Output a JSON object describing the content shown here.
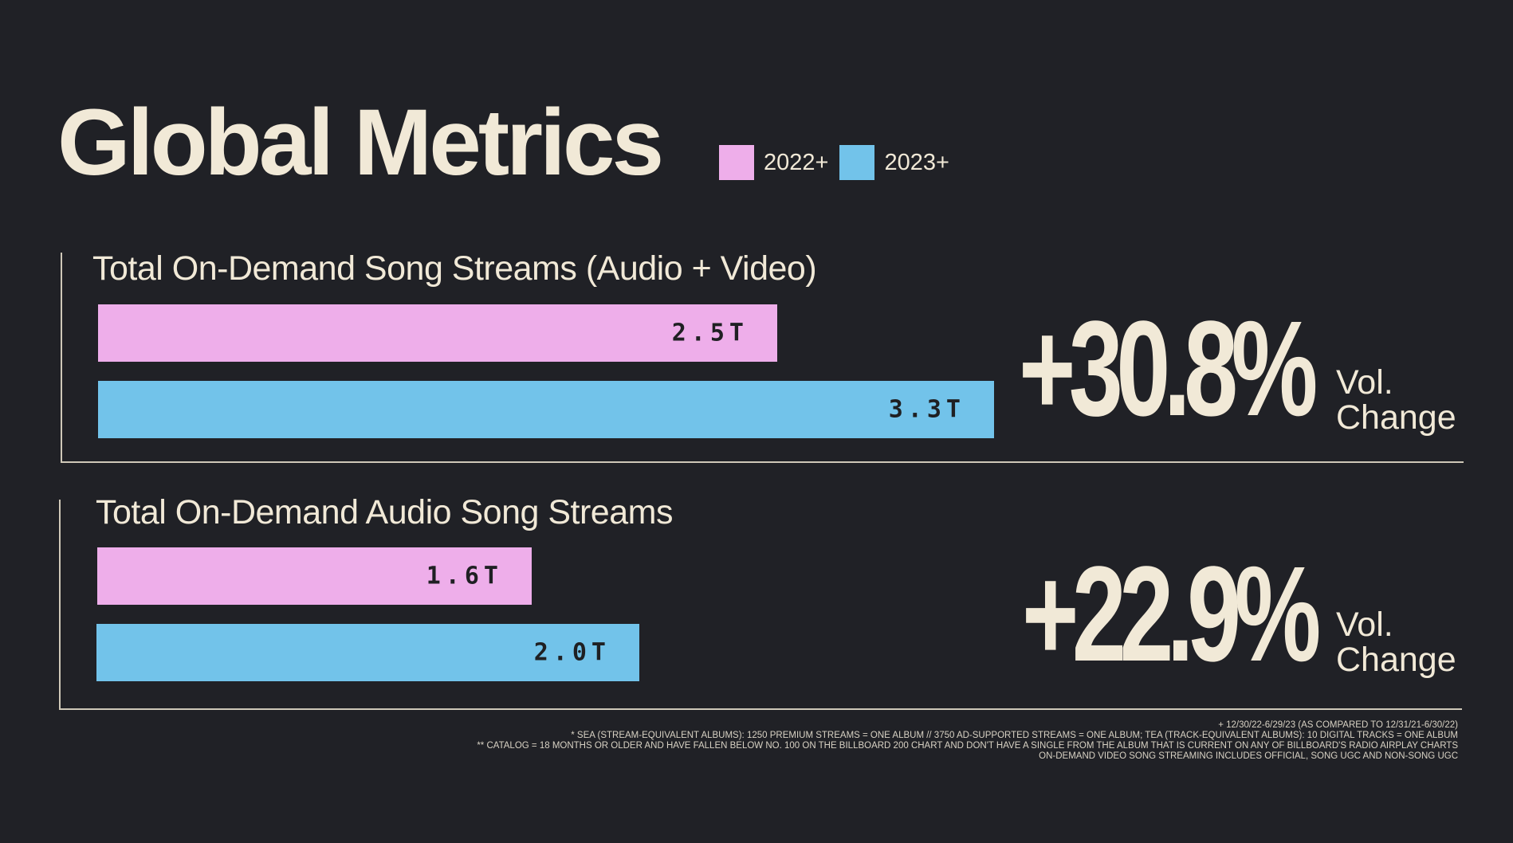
{
  "title": "Global Metrics",
  "colors": {
    "background": "#202126",
    "text": "#f1e9d7",
    "series_2022": "#eeaeea",
    "series_2023": "#72c3ea"
  },
  "legend": [
    {
      "label": "2022+",
      "color": "#eeaeea"
    },
    {
      "label": "2023+",
      "color": "#72c3ea"
    }
  ],
  "chart_data": [
    {
      "type": "bar",
      "orientation": "horizontal",
      "title": "Total On-Demand Song Streams (Audio + Video)",
      "series": [
        {
          "name": "2022+",
          "value": 2.5,
          "label": "2.5T"
        },
        {
          "name": "2023+",
          "value": 3.3,
          "label": "3.3T"
        }
      ],
      "unit": "T",
      "change": {
        "value": "+30.8%",
        "label_line1": "Vol.",
        "label_line2": "Change"
      }
    },
    {
      "type": "bar",
      "orientation": "horizontal",
      "title": "Total On-Demand Audio Song Streams",
      "series": [
        {
          "name": "2022+",
          "value": 1.6,
          "label": "1.6T"
        },
        {
          "name": "2023+",
          "value": 2.0,
          "label": "2.0T"
        }
      ],
      "unit": "T",
      "change": {
        "value": "+22.9%",
        "label_line1": "Vol.",
        "label_line2": "Change"
      }
    }
  ],
  "footnotes": [
    "+ 12/30/22-6/29/23 (AS COMPARED TO 12/31/21-6/30/22)",
    "* SEA (STREAM-EQUIVALENT ALBUMS): 1250 PREMIUM STREAMS = ONE ALBUM // 3750 AD-SUPPORTED STREAMS = ONE ALBUM; TEA (TRACK-EQUIVALENT ALBUMS): 10 DIGITAL TRACKS = ONE ALBUM",
    "** CATALOG = 18 MONTHS OR OLDER AND HAVE FALLEN BELOW NO. 100 ON THE BILLBOARD 200 CHART AND DON'T HAVE A SINGLE FROM THE ALBUM THAT IS CURRENT ON ANY OF BILLBOARD'S RADIO AIRPLAY CHARTS",
    "ON-DEMAND VIDEO SONG STREAMING INCLUDES OFFICIAL, SONG UGC AND NON-SONG UGC"
  ]
}
